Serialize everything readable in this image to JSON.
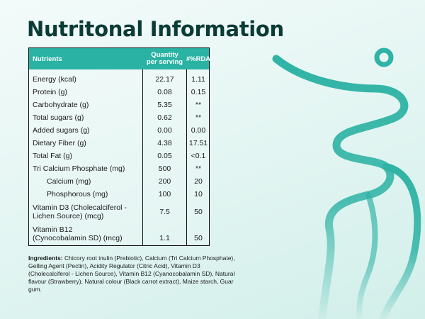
{
  "title": "Nutritonal Information",
  "table": {
    "headers": {
      "nutrients": "Nutrients",
      "quantity_line1": "Quantity",
      "quantity_line2": "per serving",
      "rda": "#%RDA"
    },
    "rows": [
      {
        "name": "Energy (kcal)",
        "qty": "22.17",
        "rda": "1.11"
      },
      {
        "name": "Protein (g)",
        "qty": "0.08",
        "rda": "0.15"
      },
      {
        "name": "Carbohydrate (g)",
        "qty": "5.35",
        "rda": "**"
      },
      {
        "name": "Total sugars (g)",
        "qty": "0.62",
        "rda": "**"
      },
      {
        "name": "Added sugars (g)",
        "qty": "0.00",
        "rda": "0.00"
      },
      {
        "name": "Dietary Fiber (g)",
        "qty": "4.38",
        "rda": "17.51"
      },
      {
        "name": "Total Fat (g)",
        "qty": "0.05",
        "rda": "<0.1"
      },
      {
        "name": "Tri Calcium Phosphate (mg)",
        "qty": "500",
        "rda": "**"
      },
      {
        "name": "Calcium (mg)",
        "qty": "200",
        "rda": "20"
      },
      {
        "name": "Phosphorous (mg)",
        "qty": "100",
        "rda": "10"
      },
      {
        "name": "Vitamin D3 (Cholecalciferol -",
        "name2": "Lichen Source) (mcg)",
        "qty": "7.5",
        "rda": "50"
      },
      {
        "name": "Vitamin B12",
        "name2": "(Cynocobalamin SD) (mcg)",
        "qty": "1.1",
        "rda": "50"
      }
    ]
  },
  "ingredients": {
    "label": "Ingredients:",
    "text": "Chicory root inulin (Prebiotic), Calcium (Tri Calcium Phosphate), Gelling Agent (Pectin), Acidity Regulator (Citric Acid), Vitamin D3 (Cholecalciferol - Lichen Source), Vitamin B12 (Cyanocobalamin SD), Natural flavour (Strawberry), Natural colour (Black carrot extract), Maize starch, Guar gum."
  },
  "colors": {
    "header_bg": "#2ab3a4",
    "title": "#0b3b36",
    "decoration": "#2fb3a5"
  },
  "decoration_icon": "swirl-figure-illustration"
}
